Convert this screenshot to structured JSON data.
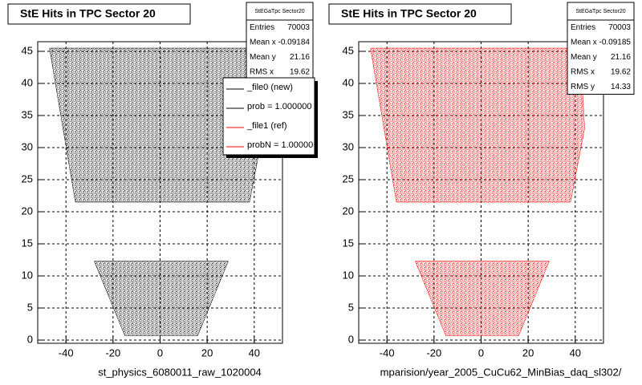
{
  "chart_data": [
    {
      "type": "scatter",
      "title": "StE Hits in TPC Sector 20",
      "x_label": "st_physics_6080011_raw_1020004",
      "color": "#000000",
      "grid": true,
      "xlim": [
        -52,
        52
      ],
      "ylim": [
        -0.5,
        46.5
      ],
      "xticks": [
        -40,
        -20,
        0,
        20,
        40
      ],
      "yticks": [
        0,
        5,
        10,
        15,
        20,
        25,
        30,
        35,
        40,
        45
      ],
      "regions": [
        {
          "x": [
            -47,
            42,
            44,
            38,
            -36
          ],
          "y": [
            45.5,
            45.5,
            33,
            21.5,
            21.5
          ]
        },
        {
          "x": [
            -28,
            29,
            16,
            -15
          ],
          "y": [
            12.3,
            12.3,
            0.7,
            0.7
          ]
        }
      ],
      "stats": {
        "title": "StEGaTpc Sector20",
        "rows": [
          [
            "Entries",
            70003
          ],
          [
            "Mean x",
            -0.09184
          ],
          [
            "Mean y",
            21.16
          ],
          [
            "RMS x",
            19.62
          ]
        ]
      },
      "legend": [
        {
          "label": "_file0 (new)",
          "color": "#000000"
        },
        {
          "label": "prob = 1.000000",
          "color": "#000000"
        },
        {
          "label": "_file1 (ref)",
          "color": "#ff0000"
        },
        {
          "label": "probN = 1.00000",
          "color": "#ff0000"
        }
      ]
    },
    {
      "type": "scatter",
      "title": "StE Hits in TPC Sector 20",
      "x_label": "mparision/year_2005_CuCu62_MinBias_daq_sl302/",
      "color": "#ff0000",
      "grid": true,
      "xlim": [
        -52,
        52
      ],
      "ylim": [
        -0.5,
        46.5
      ],
      "xticks": [
        -40,
        -20,
        0,
        20,
        40
      ],
      "yticks": [
        0,
        5,
        10,
        15,
        20,
        25,
        30,
        35,
        40,
        45
      ],
      "regions": [
        {
          "x": [
            -47,
            42,
            44,
            38,
            -36
          ],
          "y": [
            45.5,
            45.5,
            33,
            21.5,
            21.5
          ]
        },
        {
          "x": [
            -28,
            29,
            16,
            -15
          ],
          "y": [
            12.3,
            12.3,
            0.7,
            0.7
          ]
        }
      ],
      "stats": {
        "title": "StEGaTpc Sector20",
        "rows": [
          [
            "Entries",
            70003
          ],
          [
            "Mean x",
            -0.09185
          ],
          [
            "Mean y",
            21.16
          ],
          [
            "RMS x",
            19.62
          ],
          [
            "RMS y",
            14.33
          ]
        ]
      }
    }
  ]
}
